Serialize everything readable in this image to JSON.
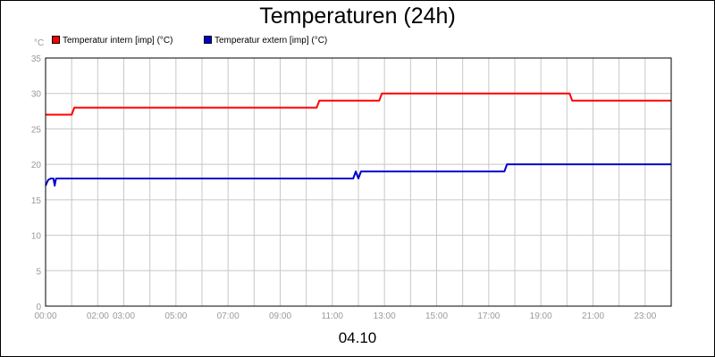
{
  "chart_data": {
    "type": "line",
    "title": "Temperaturen (24h)",
    "ylabel": "°C",
    "xlabel": "04.10",
    "ylim": [
      0,
      35
    ],
    "yticks": [
      0,
      5,
      10,
      15,
      20,
      25,
      30,
      35
    ],
    "xlim": [
      0,
      24
    ],
    "x_tick_labels": [
      "00:00",
      "02:00",
      "03:00",
      "05:00",
      "07:00",
      "09:00",
      "11:00",
      "13:00",
      "15:00",
      "17:00",
      "19:00",
      "21:00",
      "23:00"
    ],
    "x_tick_hours": [
      0,
      2,
      3,
      5,
      7,
      9,
      11,
      13,
      15,
      17,
      19,
      21,
      23
    ],
    "grid": true,
    "legend_position": "top-left",
    "series": [
      {
        "name": "Temperatur intern [imp] (°C)",
        "color": "#ff0000",
        "points": [
          [
            0,
            27
          ],
          [
            1.0,
            27
          ],
          [
            1.1,
            28
          ],
          [
            10.4,
            28
          ],
          [
            10.5,
            29
          ],
          [
            12.8,
            29
          ],
          [
            12.9,
            30
          ],
          [
            20.1,
            30
          ],
          [
            20.2,
            29
          ],
          [
            24,
            29
          ]
        ]
      },
      {
        "name": "Temperatur extern [imp] (°C)",
        "color": "#0000cc",
        "points": [
          [
            0,
            17
          ],
          [
            0.1,
            17.8
          ],
          [
            0.2,
            18
          ],
          [
            0.3,
            18
          ],
          [
            0.35,
            17
          ],
          [
            0.4,
            18
          ],
          [
            11.8,
            18
          ],
          [
            11.9,
            19
          ],
          [
            12.0,
            18
          ],
          [
            12.1,
            19
          ],
          [
            17.6,
            19
          ],
          [
            17.7,
            20
          ],
          [
            24,
            20
          ]
        ]
      }
    ]
  }
}
